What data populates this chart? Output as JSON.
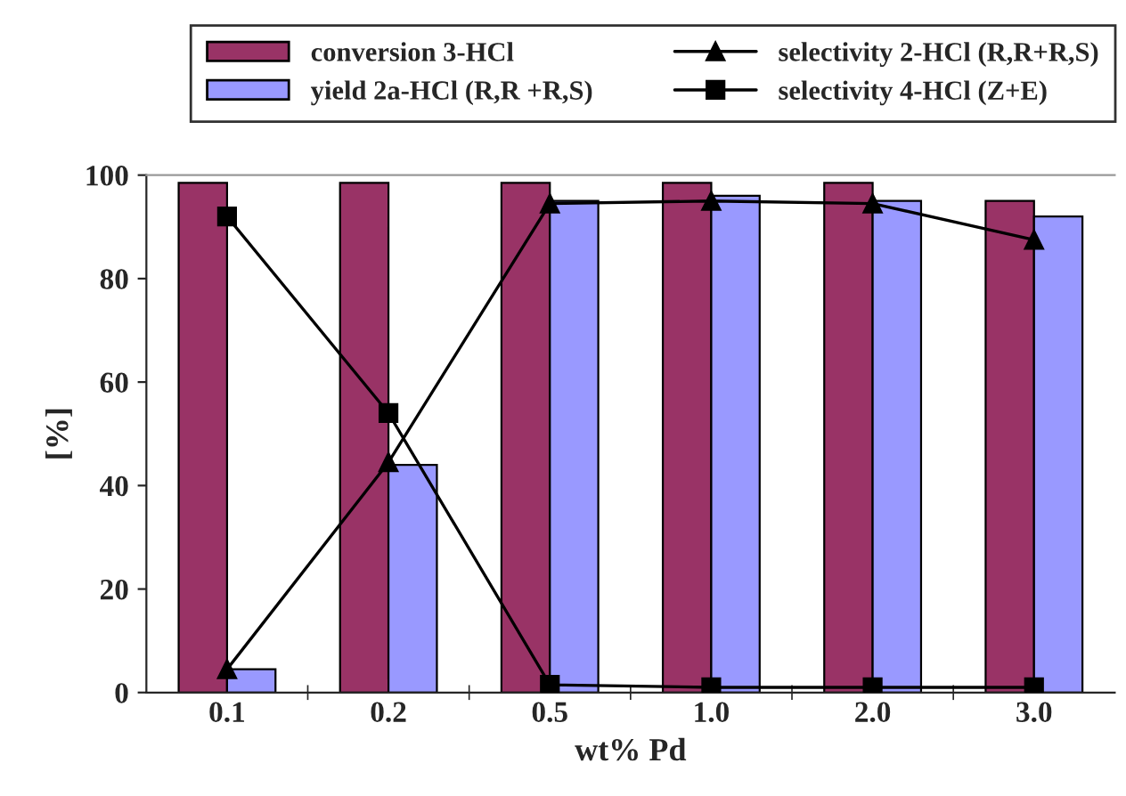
{
  "chart_data": {
    "type": "bar",
    "xlabel": "wt% Pd",
    "ylabel": "[%]",
    "categories": [
      "0.1",
      "0.2",
      "0.5",
      "1.0",
      "2.0",
      "3.0"
    ],
    "series": [
      {
        "name": "conversion 3-HCl",
        "color": "#993366",
        "values": [
          98.5,
          98.5,
          98.5,
          98.5,
          98.5,
          95
        ]
      },
      {
        "name": "yield 2a-HCl (R,R +R,S)",
        "color": "#9999ff",
        "values": [
          4.5,
          44,
          95,
          96,
          95,
          92
        ]
      },
      {
        "type": "line",
        "name": "selectivity 2-HCl (R,R+R,S)",
        "color": "#000000",
        "marker": "triangle",
        "values": [
          4.5,
          44.5,
          94.5,
          95,
          94.5,
          87.5
        ]
      },
      {
        "type": "line",
        "name": "selectivity 4-HCl (Z+E)",
        "color": "#000000",
        "marker": "square",
        "values": [
          92,
          54,
          1.5,
          1,
          1,
          1
        ]
      }
    ],
    "ylim": [
      0,
      100
    ],
    "yticks": [
      0,
      20,
      40,
      60,
      80,
      100
    ],
    "grid": false,
    "legend": "top"
  }
}
